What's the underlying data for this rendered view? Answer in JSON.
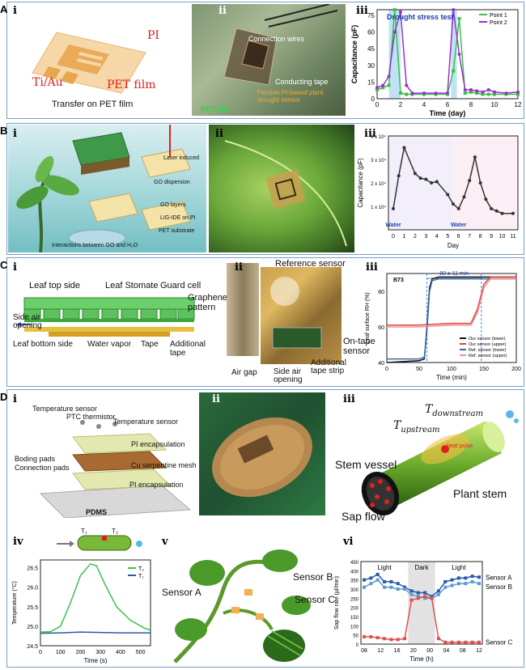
{
  "rows": {
    "A": {
      "letter": "A"
    },
    "B": {
      "letter": "B"
    },
    "C": {
      "letter": "C"
    },
    "D": {
      "letter": "D"
    }
  },
  "sub": {
    "i": "i",
    "ii": "ii",
    "iii": "iii",
    "iv": "iv",
    "v": "v",
    "vi": "vi"
  },
  "A_i": {
    "pi": "PI",
    "tiau": "Ti/Au",
    "pet": "PET film",
    "caption": "Transfer on PET film"
  },
  "A_ii": {
    "wires": "Connection wires",
    "tape": "Conducting tape",
    "sensor": "Flexible PI-based plant drought sensor",
    "pet": "PET film"
  },
  "A_iii_chart": {
    "type": "line",
    "title": "Drought stress test",
    "xlabel": "Time (day)",
    "ylabel": "Capacitance (pF)",
    "xlim": [
      0,
      12
    ],
    "ylim": [
      0,
      80
    ],
    "xticks": [
      0,
      2,
      4,
      6,
      8,
      10,
      12
    ],
    "yticks": [
      0,
      15,
      30,
      45,
      60,
      75
    ],
    "legend": [
      "Point 1",
      "Point 2"
    ],
    "series": [
      {
        "name": "Point 1",
        "color": "#3bbf4a",
        "x": [
          0,
          0.5,
          1,
          1.5,
          2,
          2.5,
          3,
          4,
          5,
          6,
          6.5,
          7,
          7.5,
          8,
          8.5,
          9,
          9.5,
          10,
          11,
          12
        ],
        "y": [
          8,
          10,
          12,
          80,
          5,
          4,
          4,
          4,
          4,
          4,
          25,
          72,
          5,
          6,
          5,
          4,
          4,
          4,
          4,
          4
        ]
      },
      {
        "name": "Point 2",
        "color": "#9a2fcf",
        "x": [
          0,
          0.5,
          1,
          1.5,
          2,
          2.5,
          3,
          4,
          5,
          6,
          6.5,
          7,
          7.5,
          8,
          8.5,
          9,
          9.5,
          10,
          11,
          12
        ],
        "y": [
          10,
          12,
          20,
          60,
          78,
          12,
          5,
          5,
          5,
          5,
          80,
          40,
          8,
          8,
          7,
          6,
          8,
          6,
          5,
          6
        ]
      }
    ]
  },
  "B_i": {
    "laser": "Laser induced",
    "go": "GO dispersion",
    "layers": "GO layers",
    "lig": "LIG-IDE on PI",
    "pet": "PET substrate",
    "inter": "Interactions between GO and H₂O"
  },
  "B_iii_chart": {
    "type": "line",
    "xlabel": "Day",
    "ylabel": "Capacitance (pF)",
    "xlim": [
      0,
      11
    ],
    "xticks": [
      0,
      1,
      2,
      3,
      4,
      5,
      6,
      7,
      8,
      9,
      10,
      11
    ],
    "yticks": [
      "1 x 10⁴",
      "2 x 10⁴",
      "3 x 10⁴",
      "4 x 10⁴"
    ],
    "annotations": [
      "Water",
      "Water"
    ],
    "x": [
      0,
      0.5,
      1,
      2,
      2.5,
      3,
      3.5,
      4,
      5,
      5.5,
      6,
      6.5,
      7,
      7.5,
      8,
      8.5,
      9,
      9.5,
      10,
      11
    ],
    "y": [
      9000,
      23000,
      35000,
      24000,
      22000,
      21500,
      20000,
      20500,
      15000,
      11000,
      9000,
      14000,
      21000,
      31000,
      20000,
      13000,
      9000,
      8000,
      7000,
      7000
    ]
  },
  "C_i": {
    "top": "Leaf top side",
    "stomate": "Leaf Stomate",
    "guard": "Guard cell",
    "graphene": "Graphene pattern",
    "side": "Side air opening",
    "bottom": "Leaf bottom side",
    "vapor": "Water vapor",
    "tape": "Tape",
    "additional": "Additional tape"
  },
  "C_ii": {
    "ref": "Reference sensor",
    "airgap": "Air gap",
    "side": "Side air opening",
    "strip": "Additional tape strip",
    "ontape": "On-tape sensor"
  },
  "C_iii_chart": {
    "type": "line",
    "xlabel": "Time (min)",
    "ylabel": "Leaf surface RH (%)",
    "xlim": [
      0,
      200
    ],
    "ylim": [
      40,
      90
    ],
    "xticks": [
      0,
      50,
      100,
      150,
      200
    ],
    "yticks": [
      40,
      60,
      80
    ],
    "tag": "B73",
    "interval": "80 ± 11 min",
    "legend": [
      "Our sensor (lower)",
      "Our sensor (upper)",
      "Ref. sensor (lower)",
      "Ref. sensor (upper)"
    ],
    "series": [
      {
        "name": "Our sensor (lower)",
        "color": "#111",
        "x": [
          0,
          50,
          58,
          62,
          66,
          70,
          80,
          100,
          150,
          200
        ],
        "y": [
          40,
          41,
          42,
          60,
          82,
          87,
          88,
          88,
          88,
          88
        ]
      },
      {
        "name": "Our sensor (upper)",
        "color": "#e04040",
        "x": [
          0,
          50,
          100,
          130,
          140,
          150,
          160,
          200
        ],
        "y": [
          61,
          61,
          62,
          62,
          70,
          84,
          88,
          88
        ]
      },
      {
        "name": "Ref. sensor (lower)",
        "color": "#3a6aa8",
        "x": [
          0,
          50,
          58,
          62,
          66,
          70,
          80,
          100,
          150,
          200
        ],
        "y": [
          42,
          42,
          43,
          58,
          80,
          86,
          87,
          87,
          87,
          87
        ]
      },
      {
        "name": "Ref. sensor (upper)",
        "color": "#f09090",
        "x": [
          0,
          50,
          100,
          130,
          140,
          150,
          160,
          200
        ],
        "y": [
          60,
          60,
          61,
          61,
          68,
          82,
          87,
          87
        ]
      }
    ]
  },
  "D_i": {
    "temp1": "Temperature sensor",
    "ptc": "PTC thermistor",
    "temp2": "Temperature sensor",
    "pi1": "PI encapsulation",
    "boding": "Boding pads",
    "conn": "Connection pads",
    "cu": "Cu serpentine mesh",
    "pi2": "PI encapsulation",
    "pdms": "PDMS"
  },
  "D_iii": {
    "tup": "T",
    "tup_sub": "upstream",
    "tdown": "T",
    "tdown_sub": "downstream",
    "vessel": "Stem vessel",
    "stem": "Plant stem",
    "sap": "Sap flow",
    "heat": "heat pulse"
  },
  "D_iv_chart": {
    "type": "line",
    "xlabel": "Time (s)",
    "ylabel": "Temperature (°C)",
    "xlim": [
      0,
      550
    ],
    "ylim": [
      24.5,
      26.7
    ],
    "xticks": [
      0,
      100,
      200,
      300,
      400,
      500
    ],
    "yticks": [
      24.5,
      25.0,
      25.5,
      26.0,
      26.5
    ],
    "series": [
      {
        "name": "T₂",
        "color": "#3bbf4a",
        "x": [
          0,
          50,
          100,
          150,
          200,
          250,
          280,
          320,
          380,
          450,
          520,
          550
        ],
        "y": [
          24.85,
          24.86,
          25.0,
          25.6,
          26.3,
          26.6,
          26.55,
          26.1,
          25.5,
          25.15,
          24.95,
          24.9
        ]
      },
      {
        "name": "T₁",
        "color": "#2a5aa8",
        "x": [
          0,
          100,
          200,
          300,
          400,
          500,
          550
        ],
        "y": [
          24.82,
          24.83,
          24.85,
          24.84,
          24.83,
          24.83,
          24.83
        ]
      }
    ],
    "icon_labels": [
      "T₁",
      "T₂"
    ]
  },
  "D_v": {
    "a": "Sensor A",
    "b": "Sensor B",
    "c": "Sensor C"
  },
  "D_vi_chart": {
    "type": "line",
    "xlabel": "Time (h)",
    "ylabel": "Sap flow rate (µl/min)",
    "ylim": [
      0,
      450
    ],
    "xticks": [
      "08",
      "12",
      "16",
      "20",
      "00",
      "04",
      "08",
      "12"
    ],
    "yticks": [
      0,
      50,
      100,
      150,
      200,
      250,
      300,
      350,
      400,
      450
    ],
    "bands": [
      "Light",
      "Dark",
      "Light"
    ],
    "series": [
      {
        "name": "Sensor A",
        "color": "#2a5aa8",
        "x": [
          0,
          1,
          2,
          3,
          4,
          5,
          6,
          7,
          8,
          9,
          10,
          11,
          12,
          13,
          14,
          15,
          16,
          17
        ],
        "y": [
          350,
          360,
          380,
          340,
          340,
          330,
          310,
          290,
          280,
          280,
          260,
          290,
          340,
          350,
          360,
          360,
          370,
          365
        ]
      },
      {
        "name": "Sensor B",
        "color": "#5b9bd5",
        "x": [
          0,
          1,
          2,
          3,
          4,
          5,
          6,
          7,
          8,
          9,
          10,
          11,
          12,
          13,
          14,
          15,
          16,
          17
        ],
        "y": [
          310,
          330,
          350,
          310,
          310,
          300,
          300,
          270,
          260,
          250,
          250,
          270,
          310,
          320,
          330,
          330,
          340,
          330
        ]
      },
      {
        "name": "Sensor C",
        "color": "#e05050",
        "x": [
          0,
          1,
          2,
          3,
          4,
          5,
          6,
          7,
          8,
          9,
          10,
          11,
          12,
          13,
          14,
          15,
          16,
          17
        ],
        "y": [
          40,
          40,
          35,
          30,
          25,
          25,
          30,
          240,
          250,
          260,
          250,
          30,
          10,
          10,
          10,
          10,
          10,
          10
        ]
      }
    ]
  }
}
